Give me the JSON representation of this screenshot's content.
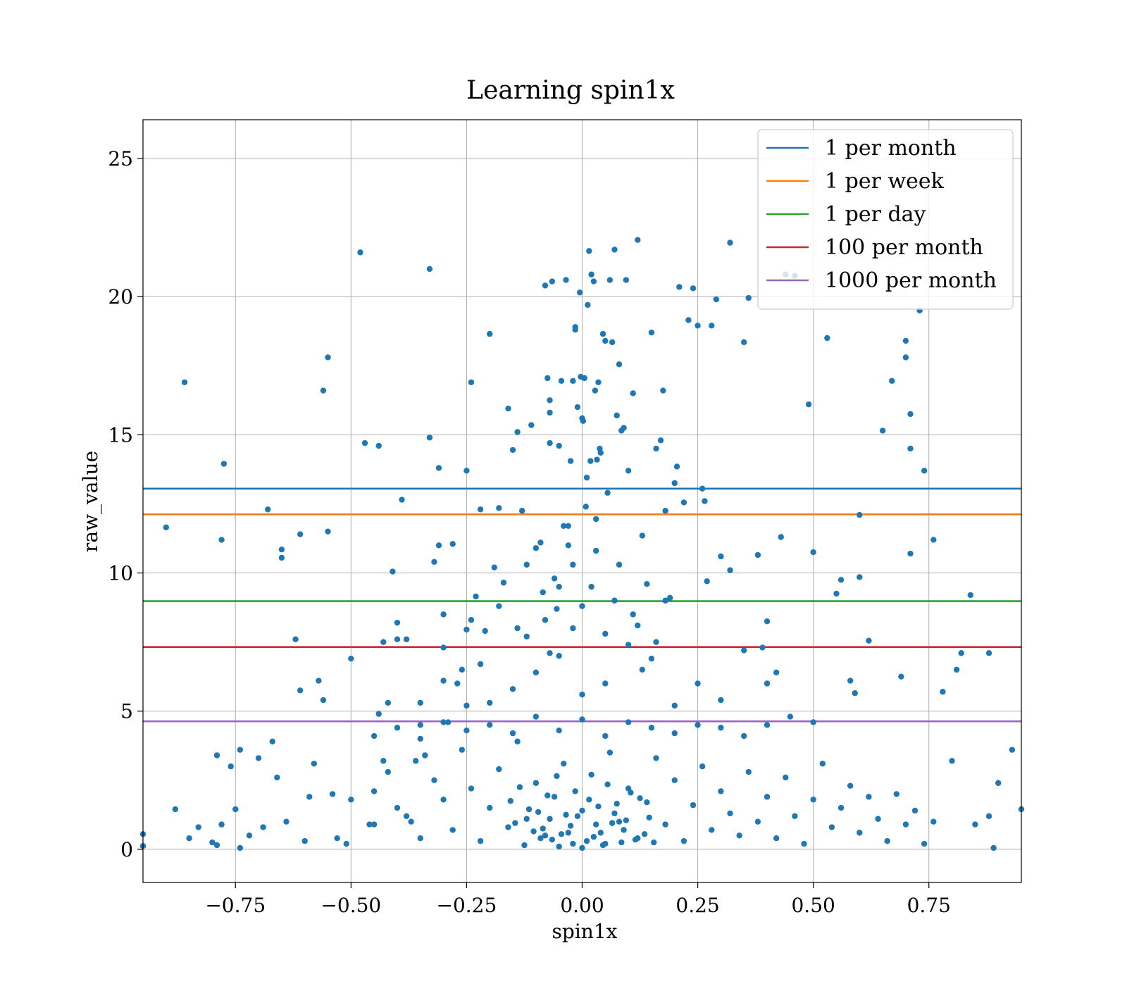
{
  "chart_data": {
    "type": "scatter",
    "title": "Learning spin1x",
    "xlabel": "spin1x",
    "ylabel": "raw_value",
    "xlim": [
      -0.95,
      0.95
    ],
    "ylim": [
      -1.2,
      26.4
    ],
    "xticks": [
      -0.75,
      -0.5,
      -0.25,
      0.0,
      0.25,
      0.5,
      0.75
    ],
    "xtick_labels": [
      "−0.75",
      "−0.50",
      "−0.25",
      "0.00",
      "0.25",
      "0.50",
      "0.75"
    ],
    "yticks": [
      0,
      5,
      10,
      15,
      20,
      25
    ],
    "ytick_labels": [
      "0",
      "5",
      "10",
      "15",
      "20",
      "25"
    ],
    "grid": true,
    "legend_position": "top-right",
    "point_color": "#1f77b4",
    "thresholds": [
      {
        "name": "1 per month",
        "value": 13.05,
        "color": "#1f77b4"
      },
      {
        "name": "1 per week",
        "value": 12.12,
        "color": "#ff7f0e"
      },
      {
        "name": "1 per day",
        "value": 8.98,
        "color": "#2ca02c"
      },
      {
        "name": "100 per month",
        "value": 7.32,
        "color": "#d62728"
      },
      {
        "name": "1000 per month",
        "value": 4.63,
        "color": "#9467bd"
      }
    ],
    "points": [
      [
        -0.95,
        0.55
      ],
      [
        -0.95,
        0.12
      ],
      [
        -0.9,
        11.65
      ],
      [
        -0.88,
        1.45
      ],
      [
        -0.86,
        16.9
      ],
      [
        -0.85,
        0.4
      ],
      [
        -0.83,
        0.8
      ],
      [
        -0.8,
        0.25
      ],
      [
        -0.79,
        0.15
      ],
      [
        -0.79,
        3.4
      ],
      [
        -0.78,
        11.2
      ],
      [
        -0.78,
        0.9
      ],
      [
        -0.775,
        13.95
      ],
      [
        -0.76,
        3.0
      ],
      [
        -0.75,
        1.45
      ],
      [
        -0.74,
        0.05
      ],
      [
        -0.74,
        3.6
      ],
      [
        -0.72,
        0.5
      ],
      [
        -0.7,
        3.3
      ],
      [
        -0.69,
        0.8
      ],
      [
        -0.68,
        12.3
      ],
      [
        -0.67,
        3.9
      ],
      [
        -0.66,
        2.6
      ],
      [
        -0.65,
        10.85
      ],
      [
        -0.65,
        10.55
      ],
      [
        -0.64,
        1.0
      ],
      [
        -0.62,
        7.6
      ],
      [
        -0.61,
        11.4
      ],
      [
        -0.61,
        5.75
      ],
      [
        -0.6,
        0.3
      ],
      [
        -0.59,
        1.9
      ],
      [
        -0.58,
        3.1
      ],
      [
        -0.57,
        6.1
      ],
      [
        -0.56,
        5.4
      ],
      [
        -0.56,
        16.6
      ],
      [
        -0.55,
        17.8
      ],
      [
        -0.55,
        11.5
      ],
      [
        -0.54,
        2.0
      ],
      [
        -0.53,
        0.4
      ],
      [
        -0.51,
        0.2
      ],
      [
        -0.5,
        1.8
      ],
      [
        -0.5,
        6.9
      ],
      [
        -0.48,
        21.6
      ],
      [
        -0.47,
        14.7
      ],
      [
        -0.46,
        0.9
      ],
      [
        -0.45,
        2.1
      ],
      [
        -0.44,
        14.6
      ],
      [
        -0.44,
        4.9
      ],
      [
        -0.43,
        7.5
      ],
      [
        -0.43,
        3.2
      ],
      [
        -0.42,
        5.3
      ],
      [
        -0.41,
        10.05
      ],
      [
        -0.4,
        8.2
      ],
      [
        -0.4,
        1.5
      ],
      [
        -0.39,
        12.65
      ],
      [
        -0.38,
        7.6
      ],
      [
        -0.37,
        1.0
      ],
      [
        -0.36,
        3.2
      ],
      [
        -0.35,
        4.5
      ],
      [
        -0.34,
        3.4
      ],
      [
        -0.33,
        14.9
      ],
      [
        -0.33,
        21.0
      ],
      [
        -0.32,
        10.4
      ],
      [
        -0.31,
        13.8
      ],
      [
        -0.31,
        11.0
      ],
      [
        -0.3,
        8.5
      ],
      [
        -0.3,
        7.3
      ],
      [
        -0.29,
        4.6
      ],
      [
        -0.28,
        11.05
      ],
      [
        -0.27,
        6.0
      ],
      [
        -0.26,
        6.5
      ],
      [
        -0.25,
        13.7
      ],
      [
        -0.25,
        7.95
      ],
      [
        -0.24,
        8.3
      ],
      [
        -0.24,
        16.9
      ],
      [
        -0.23,
        9.15
      ],
      [
        -0.22,
        12.3
      ],
      [
        -0.22,
        6.7
      ],
      [
        -0.21,
        7.9
      ],
      [
        -0.2,
        18.65
      ],
      [
        -0.19,
        10.2
      ],
      [
        -0.18,
        12.35
      ],
      [
        -0.17,
        9.65
      ],
      [
        -0.16,
        15.95
      ],
      [
        -0.15,
        14.45
      ],
      [
        -0.14,
        15.1
      ],
      [
        -0.13,
        12.25
      ],
      [
        -0.12,
        10.3
      ],
      [
        -0.11,
        15.35
      ],
      [
        -0.1,
        10.9
      ],
      [
        -0.09,
        11.1
      ],
      [
        -0.085,
        9.3
      ],
      [
        -0.08,
        20.4
      ],
      [
        -0.075,
        17.05
      ],
      [
        -0.07,
        16.25
      ],
      [
        -0.07,
        15.8
      ],
      [
        -0.07,
        14.7
      ],
      [
        -0.065,
        20.55
      ],
      [
        -0.06,
        9.8
      ],
      [
        -0.055,
        8.7
      ],
      [
        -0.05,
        14.6
      ],
      [
        -0.045,
        16.95
      ],
      [
        -0.04,
        11.7
      ],
      [
        -0.035,
        20.6
      ],
      [
        -0.03,
        11.7
      ],
      [
        -0.025,
        14.05
      ],
      [
        -0.02,
        16.95
      ],
      [
        -0.02,
        10.3
      ],
      [
        -0.015,
        18.9
      ],
      [
        -0.015,
        18.8
      ],
      [
        -0.01,
        16.0
      ],
      [
        -0.005,
        20.15
      ],
      [
        -0.003,
        17.1
      ],
      [
        0.0,
        15.6
      ],
      [
        0.002,
        15.5
      ],
      [
        0.005,
        17.05
      ],
      [
        0.008,
        12.4
      ],
      [
        0.01,
        13.45
      ],
      [
        0.012,
        19.7
      ],
      [
        0.015,
        21.65
      ],
      [
        0.018,
        14.05
      ],
      [
        0.02,
        20.8
      ],
      [
        0.025,
        20.55
      ],
      [
        0.028,
        16.6
      ],
      [
        0.03,
        11.95
      ],
      [
        0.032,
        14.1
      ],
      [
        0.035,
        16.9
      ],
      [
        0.038,
        14.5
      ],
      [
        0.04,
        14.35
      ],
      [
        0.045,
        18.65
      ],
      [
        0.05,
        18.4
      ],
      [
        0.055,
        12.9
      ],
      [
        0.06,
        20.6
      ],
      [
        0.065,
        18.35
      ],
      [
        0.07,
        21.7
      ],
      [
        0.075,
        15.7
      ],
      [
        0.08,
        17.55
      ],
      [
        0.085,
        15.15
      ],
      [
        0.09,
        15.25
      ],
      [
        0.095,
        20.6
      ],
      [
        0.1,
        13.7
      ],
      [
        0.11,
        16.5
      ],
      [
        0.12,
        22.05
      ],
      [
        0.13,
        11.35
      ],
      [
        0.14,
        9.6
      ],
      [
        0.15,
        18.7
      ],
      [
        0.16,
        14.5
      ],
      [
        0.17,
        14.8
      ],
      [
        0.175,
        16.6
      ],
      [
        0.18,
        12.25
      ],
      [
        0.19,
        9.1
      ],
      [
        0.2,
        13.25
      ],
      [
        0.205,
        13.85
      ],
      [
        0.21,
        20.35
      ],
      [
        0.22,
        12.55
      ],
      [
        0.23,
        19.15
      ],
      [
        0.24,
        20.3
      ],
      [
        0.25,
        18.95
      ],
      [
        0.26,
        13.05
      ],
      [
        0.265,
        12.6
      ],
      [
        0.27,
        9.7
      ],
      [
        0.28,
        18.95
      ],
      [
        0.29,
        19.9
      ],
      [
        0.3,
        10.6
      ],
      [
        0.32,
        10.1
      ],
      [
        0.32,
        21.95
      ],
      [
        0.35,
        18.35
      ],
      [
        0.36,
        19.95
      ],
      [
        0.38,
        10.65
      ],
      [
        0.39,
        7.3
      ],
      [
        0.4,
        8.25
      ],
      [
        0.42,
        6.4
      ],
      [
        0.43,
        11.3
      ],
      [
        0.44,
        20.8
      ],
      [
        0.46,
        20.75
      ],
      [
        0.49,
        16.1
      ],
      [
        0.5,
        10.75
      ],
      [
        0.53,
        18.5
      ],
      [
        0.55,
        9.25
      ],
      [
        0.56,
        9.75
      ],
      [
        0.58,
        6.1
      ],
      [
        0.59,
        5.65
      ],
      [
        0.6,
        9.85
      ],
      [
        0.6,
        12.1
      ],
      [
        0.62,
        7.55
      ],
      [
        0.65,
        15.15
      ],
      [
        0.67,
        16.95
      ],
      [
        0.69,
        6.25
      ],
      [
        0.7,
        18.4
      ],
      [
        0.7,
        17.8
      ],
      [
        0.71,
        15.75
      ],
      [
        0.71,
        14.5
      ],
      [
        0.71,
        10.7
      ],
      [
        0.73,
        19.5
      ],
      [
        0.74,
        13.7
      ],
      [
        0.76,
        11.2
      ],
      [
        0.78,
        5.7
      ],
      [
        0.8,
        3.2
      ],
      [
        0.81,
        6.5
      ],
      [
        0.82,
        7.1
      ],
      [
        0.84,
        9.2
      ],
      [
        0.85,
        0.9
      ],
      [
        0.88,
        7.1
      ],
      [
        0.88,
        1.2
      ],
      [
        0.9,
        2.4
      ],
      [
        0.89,
        0.05
      ],
      [
        0.93,
        3.6
      ],
      [
        0.95,
        1.45
      ],
      [
        -0.45,
        0.9
      ],
      [
        -0.42,
        2.8
      ],
      [
        -0.38,
        1.2
      ],
      [
        -0.35,
        0.4
      ],
      [
        -0.32,
        2.5
      ],
      [
        -0.3,
        1.8
      ],
      [
        -0.28,
        0.7
      ],
      [
        -0.26,
        3.6
      ],
      [
        -0.24,
        2.2
      ],
      [
        -0.22,
        0.3
      ],
      [
        -0.2,
        1.5
      ],
      [
        -0.18,
        2.9
      ],
      [
        -0.16,
        0.8
      ],
      [
        -0.14,
        3.9
      ],
      [
        -0.12,
        1.1
      ],
      [
        -0.1,
        2.4
      ],
      [
        -0.08,
        0.5
      ],
      [
        -0.06,
        1.9
      ],
      [
        -0.04,
        3.1
      ],
      [
        -0.02,
        0.2
      ],
      [
        0.0,
        1.4
      ],
      [
        0.02,
        2.7
      ],
      [
        0.04,
        0.6
      ],
      [
        0.06,
        3.5
      ],
      [
        0.08,
        1.0
      ],
      [
        0.1,
        2.2
      ],
      [
        0.12,
        0.4
      ],
      [
        0.14,
        1.7
      ],
      [
        0.16,
        3.3
      ],
      [
        0.18,
        0.9
      ],
      [
        0.2,
        2.5
      ],
      [
        0.22,
        0.3
      ],
      [
        0.24,
        1.6
      ],
      [
        0.26,
        3.0
      ],
      [
        0.28,
        0.7
      ],
      [
        0.3,
        2.1
      ],
      [
        0.32,
        1.3
      ],
      [
        0.34,
        0.5
      ],
      [
        0.36,
        2.8
      ],
      [
        0.38,
        1.0
      ],
      [
        0.4,
        1.9
      ],
      [
        0.42,
        0.4
      ],
      [
        0.44,
        2.6
      ],
      [
        0.46,
        1.2
      ],
      [
        0.48,
        0.2
      ],
      [
        0.5,
        1.8
      ],
      [
        0.52,
        3.1
      ],
      [
        0.54,
        0.8
      ],
      [
        0.56,
        1.5
      ],
      [
        0.58,
        2.3
      ],
      [
        0.6,
        0.6
      ],
      [
        0.62,
        1.9
      ],
      [
        0.64,
        1.1
      ],
      [
        0.66,
        0.3
      ],
      [
        0.68,
        2.0
      ],
      [
        0.7,
        0.9
      ],
      [
        0.72,
        1.4
      ],
      [
        0.74,
        0.2
      ],
      [
        0.76,
        1.0
      ],
      [
        -0.05,
        0.1
      ],
      [
        -0.03,
        0.6
      ],
      [
        -0.01,
        1.2
      ],
      [
        0.01,
        0.3
      ],
      [
        0.03,
        0.9
      ],
      [
        0.05,
        0.2
      ],
      [
        -0.07,
        1.1
      ],
      [
        0.07,
        1.3
      ],
      [
        -0.09,
        0.4
      ],
      [
        0.09,
        0.7
      ],
      [
        0.0,
        0.05
      ],
      [
        0.015,
        1.8
      ],
      [
        -0.015,
        2.1
      ],
      [
        0.025,
        0.45
      ],
      [
        -0.025,
        0.85
      ],
      [
        0.035,
        1.55
      ],
      [
        -0.035,
        1.25
      ],
      [
        0.045,
        0.15
      ],
      [
        -0.045,
        0.55
      ],
      [
        0.055,
        2.35
      ],
      [
        -0.055,
        2.65
      ],
      [
        0.065,
        0.95
      ],
      [
        -0.065,
        0.35
      ],
      [
        0.075,
        1.65
      ],
      [
        -0.075,
        1.95
      ],
      [
        0.085,
        0.25
      ],
      [
        -0.085,
        0.75
      ],
      [
        0.095,
        1.05
      ],
      [
        -0.095,
        1.35
      ],
      [
        0.105,
        2.05
      ],
      [
        -0.105,
        0.65
      ],
      [
        0.115,
        0.35
      ],
      [
        -0.115,
        1.45
      ],
      [
        0.125,
        1.85
      ],
      [
        -0.125,
        0.15
      ],
      [
        0.135,
        0.55
      ],
      [
        -0.135,
        2.25
      ],
      [
        0.145,
        1.15
      ],
      [
        -0.145,
        0.95
      ],
      [
        0.155,
        0.25
      ],
      [
        -0.155,
        1.75
      ],
      [
        -0.2,
        4.5
      ],
      [
        -0.15,
        4.2
      ],
      [
        -0.1,
        4.8
      ],
      [
        -0.05,
        4.3
      ],
      [
        0.0,
        4.7
      ],
      [
        0.05,
        4.1
      ],
      [
        0.1,
        4.6
      ],
      [
        0.15,
        4.4
      ],
      [
        0.2,
        4.2
      ],
      [
        0.25,
        4.5
      ],
      [
        -0.25,
        4.3
      ],
      [
        -0.3,
        4.6
      ],
      [
        0.3,
        4.4
      ],
      [
        0.35,
        4.1
      ],
      [
        -0.35,
        4.0
      ],
      [
        0.4,
        4.5
      ],
      [
        -0.4,
        4.4
      ],
      [
        0.45,
        4.8
      ],
      [
        -0.45,
        4.1
      ],
      [
        0.5,
        4.6
      ],
      [
        -0.2,
        5.3
      ],
      [
        -0.15,
        5.8
      ],
      [
        -0.1,
        6.4
      ],
      [
        -0.05,
        7.0
      ],
      [
        0.0,
        5.6
      ],
      [
        0.05,
        6.0
      ],
      [
        0.1,
        7.4
      ],
      [
        0.15,
        6.9
      ],
      [
        0.2,
        5.2
      ],
      [
        0.25,
        6.0
      ],
      [
        -0.25,
        5.2
      ],
      [
        -0.3,
        6.1
      ],
      [
        0.3,
        5.4
      ],
      [
        0.35,
        7.2
      ],
      [
        -0.35,
        5.3
      ],
      [
        0.4,
        6.0
      ],
      [
        -0.4,
        7.6
      ],
      [
        -0.08,
        8.3
      ],
      [
        0.05,
        7.8
      ],
      [
        0.12,
        8.1
      ],
      [
        -0.12,
        7.7
      ],
      [
        0.18,
        9.0
      ],
      [
        -0.18,
        8.8
      ],
      [
        0.02,
        9.5
      ],
      [
        -0.02,
        8.0
      ],
      [
        0.08,
        10.3
      ],
      [
        -0.05,
        9.5
      ],
      [
        0.03,
        10.8
      ],
      [
        -0.03,
        11.0
      ],
      [
        0.07,
        9.0
      ],
      [
        0.11,
        8.5
      ],
      [
        -0.14,
        8.0
      ],
      [
        0.16,
        7.5
      ],
      [
        0.13,
        6.5
      ],
      [
        -0.07,
        7.1
      ],
      [
        0.0,
        8.8
      ]
    ]
  }
}
